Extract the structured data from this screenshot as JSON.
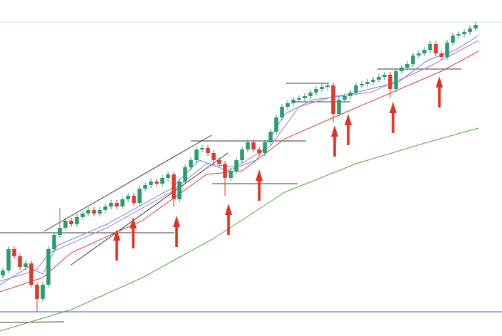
{
  "chart_data": {
    "type": "candlestick",
    "xlim": [
      -0.5,
      87.625
    ],
    "ylim": [
      0,
      472
    ],
    "up_color": "#2a9d6f",
    "down_color": "#e0392d",
    "open": [
      85,
      92,
      122,
      112,
      97,
      102,
      72,
      52,
      72,
      122,
      142,
      152,
      162,
      157,
      167,
      172,
      177,
      172,
      177,
      182,
      187,
      182,
      192,
      197,
      187,
      207,
      212,
      217,
      214,
      222,
      227,
      192,
      217,
      237,
      247,
      262,
      264,
      257,
      247,
      242,
      222,
      232,
      247,
      262,
      272,
      262,
      257,
      272,
      287,
      307,
      322,
      327,
      332,
      334,
      337,
      342,
      347,
      350,
      352,
      312,
      332,
      337,
      342,
      352,
      354,
      357,
      360,
      364,
      367,
      347,
      372,
      377,
      382,
      394,
      397,
      402,
      410,
      397,
      392,
      412,
      422,
      424,
      427,
      432
    ],
    "high": [
      96,
      126,
      126,
      116,
      106,
      106,
      76,
      76,
      126,
      146,
      180,
      166,
      166,
      171,
      176,
      181,
      181,
      181,
      186,
      191,
      191,
      196,
      201,
      201,
      211,
      216,
      221,
      221,
      226,
      231,
      231,
      221,
      241,
      251,
      266,
      268,
      268,
      261,
      251,
      246,
      236,
      251,
      266,
      276,
      276,
      266,
      276,
      291,
      311,
      326,
      331,
      336,
      338,
      341,
      346,
      351,
      354,
      356,
      356,
      336,
      341,
      346,
      356,
      358,
      361,
      364,
      368,
      371,
      371,
      376,
      381,
      386,
      398,
      401,
      406,
      414,
      414,
      401,
      416,
      426,
      428,
      431,
      436,
      441
    ],
    "low": [
      81,
      88,
      108,
      93,
      93,
      68,
      34,
      48,
      68,
      118,
      138,
      148,
      153,
      153,
      163,
      168,
      168,
      168,
      173,
      178,
      178,
      178,
      188,
      183,
      183,
      203,
      208,
      210,
      210,
      218,
      182,
      188,
      213,
      233,
      243,
      258,
      253,
      243,
      238,
      197,
      218,
      228,
      243,
      258,
      258,
      253,
      253,
      268,
      283,
      303,
      318,
      323,
      328,
      330,
      333,
      338,
      343,
      346,
      300,
      308,
      328,
      333,
      338,
      348,
      350,
      353,
      356,
      360,
      335,
      343,
      368,
      373,
      378,
      390,
      393,
      398,
      393,
      388,
      388,
      408,
      418,
      420,
      423,
      428
    ],
    "close": [
      92,
      122,
      112,
      97,
      102,
      72,
      52,
      72,
      122,
      142,
      152,
      162,
      157,
      167,
      172,
      177,
      172,
      177,
      182,
      187,
      182,
      192,
      197,
      187,
      207,
      212,
      217,
      214,
      222,
      227,
      192,
      217,
      237,
      247,
      262,
      264,
      257,
      247,
      242,
      222,
      232,
      247,
      262,
      272,
      262,
      257,
      272,
      287,
      307,
      322,
      327,
      332,
      334,
      337,
      342,
      347,
      350,
      352,
      312,
      332,
      337,
      342,
      352,
      354,
      357,
      360,
      364,
      367,
      347,
      372,
      377,
      382,
      394,
      397,
      402,
      410,
      397,
      392,
      412,
      422,
      424,
      427,
      432,
      437
    ],
    "series": [
      {
        "color": "#5b8fe0",
        "x": [
          -0.5,
          4.5,
          7,
          9.5,
          18.25,
          29.5,
          34.5,
          39.5,
          44.5,
          49.5,
          54.5,
          59.5,
          64.5,
          69.5,
          74.5,
          79.5,
          83.5
        ],
        "values": [
          72,
          97,
          87,
          127,
          157,
          207,
          247,
          232,
          247,
          312,
          332,
          337,
          347,
          357,
          387,
          402,
          422
        ]
      },
      {
        "color": "#b56fd0",
        "x": [
          -0.5,
          5.75,
          8.25,
          18.25,
          29.5,
          35.75,
          40.75,
          47,
          52,
          58.25,
          64.5,
          74.5,
          83.5
        ],
        "values": [
          77,
          92,
          117,
          152,
          202,
          242,
          237,
          267,
          322,
          337,
          342,
          377,
          415
        ]
      },
      {
        "color": "#d8402f",
        "x": [
          -0.5,
          7,
          12,
          24.5,
          35.75,
          42,
          49.5,
          59.5,
          68.25,
          77,
          83.5
        ],
        "values": [
          62,
          82,
          117,
          162,
          227,
          232,
          277,
          312,
          342,
          372,
          400
        ]
      },
      {
        "color": "#4fa83a",
        "x": [
          -0.5,
          12,
          24.5,
          37,
          49.5,
          62,
          74.5,
          83.5
        ],
        "values": [
          7,
          37,
          82,
          137,
          202,
          242,
          272,
          292
        ]
      }
    ],
    "lines": [
      {
        "color": "#3a3a3a",
        "x": [
          -0.5,
          30.125
        ],
        "values": [
          145,
          145
        ]
      },
      {
        "color": "#3a3a3a",
        "x": [
          7.25,
          36.625
        ],
        "values": [
          147,
          282
        ]
      },
      {
        "color": "#3a3a3a",
        "x": [
          12,
          39.5
        ],
        "values": [
          100,
          257
        ]
      },
      {
        "color": "#3a3a3a",
        "x": [
          33,
          53.25
        ],
        "values": [
          274,
          274
        ]
      },
      {
        "color": "#3a3a3a",
        "x": [
          36.75,
          51.75
        ],
        "values": [
          214,
          214
        ]
      },
      {
        "color": "#3a3a3a",
        "x": [
          49.75,
          57.25
        ],
        "values": [
          355,
          355
        ]
      },
      {
        "color": "#3a3a3a",
        "x": [
          50.75,
          61
        ],
        "values": [
          329,
          329
        ]
      },
      {
        "color": "#3a3a3a",
        "x": [
          65.75,
          80.5
        ],
        "values": [
          375,
          375
        ]
      },
      {
        "color": "#3a3a3a",
        "x": [
          -0.5,
          10.75
        ],
        "values": [
          19,
          20
        ]
      },
      {
        "color": "#4a4af0",
        "x": [
          -0.5,
          87.625
        ],
        "values": [
          34,
          34
        ]
      },
      {
        "color": "#bfe8df",
        "x": [
          -0.5,
          87.625
        ],
        "values": [
          441,
          441
        ]
      }
    ],
    "markers": {
      "color": "#e5301f",
      "x": [
        20,
        22.875,
        30.5,
        39.625,
        45,
        58.25,
        60.625,
        68.5,
        76.625
      ],
      "values": [
        150,
        167,
        169,
        186,
        234,
        296,
        312,
        329,
        365
      ]
    }
  }
}
